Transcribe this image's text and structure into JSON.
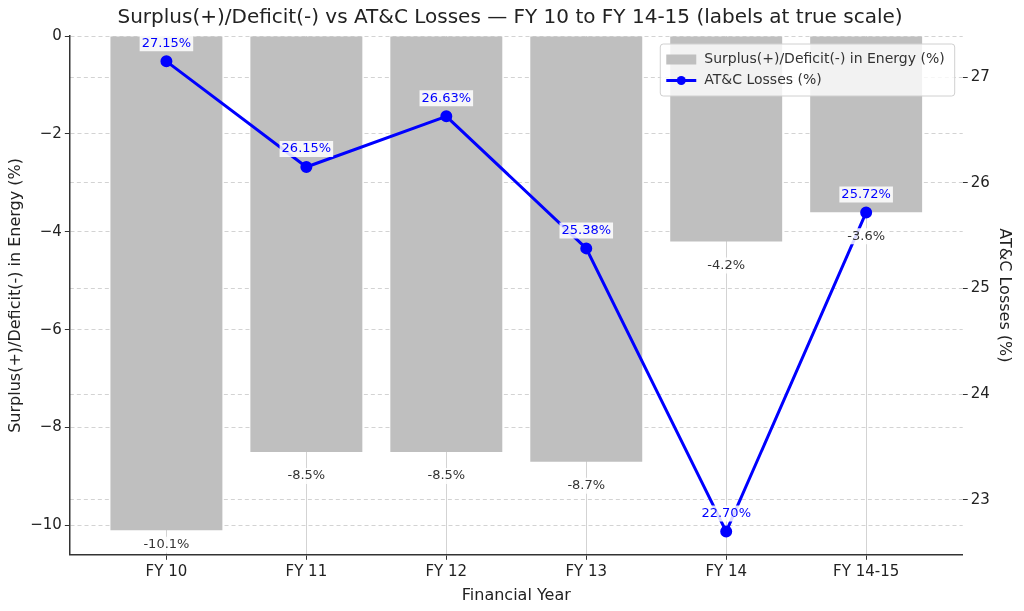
{
  "chart_data": {
    "type": "bar",
    "title": "Surplus(+)/Deficit(-) vs AT&C Losses — FY 10 to FY 14-15 (labels at true scale)",
    "xlabel": "Financial Year",
    "ylabel": "Surplus(+)/Deficit(-) in Energy (%)",
    "y2label": "AT&C Losses (%)",
    "categories": [
      "FY 10",
      "FY 11",
      "FY 12",
      "FY 13",
      "FY 14",
      "FY 14-15"
    ],
    "series": [
      {
        "name": "Surplus(+)/Deficit(-) in Energy (%)",
        "color": "#bfbfbf",
        "values": [
          -10.1,
          -8.5,
          -8.5,
          -8.7,
          -4.2,
          -3.6
        ],
        "value_labels": [
          "-10.1%",
          "-8.5%",
          "-8.5%",
          "-8.7%",
          "-4.2%",
          "-3.6%"
        ]
      },
      {
        "name": "AT&C Losses (%)",
        "type": "line",
        "axis": "y2",
        "color": "#0000ff",
        "values": [
          27.15,
          26.15,
          26.63,
          25.38,
          22.7,
          25.72
        ],
        "value_labels": [
          "27.15%",
          "26.15%",
          "26.63%",
          "25.38%",
          "22.70%",
          "25.72%"
        ]
      }
    ],
    "ylim": [
      -10.6,
      0
    ],
    "yticks": [
      {
        "value": -10,
        "label": "−10"
      },
      {
        "value": -8,
        "label": "−8"
      },
      {
        "value": -6,
        "label": "−6"
      },
      {
        "value": -4,
        "label": "−4"
      },
      {
        "value": -2,
        "label": "−2"
      },
      0
    ],
    "y2lim": [
      22.48,
      27.39
    ],
    "y2ticks": [
      23,
      24,
      25,
      26,
      27
    ],
    "grid": true,
    "legend": "top right",
    "marker": "circle",
    "line_style": "solid"
  }
}
